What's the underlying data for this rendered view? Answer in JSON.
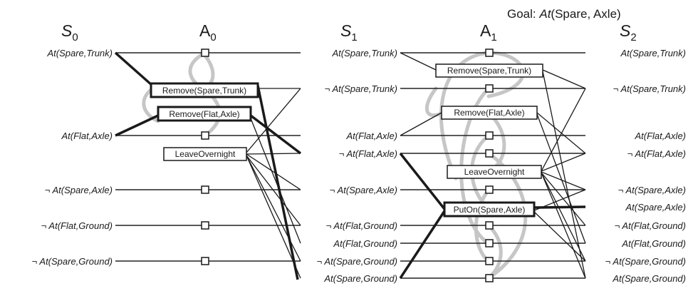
{
  "goal": {
    "prefix": "Goal: ",
    "predicate": "At",
    "args": "(Spare, Axle)"
  },
  "levels": {
    "s0": {
      "letter": "S",
      "sub": "0"
    },
    "a0": {
      "letter": "A",
      "sub": "0"
    },
    "s1": {
      "letter": "S",
      "sub": "1"
    },
    "a1": {
      "letter": "A",
      "sub": "1"
    },
    "s2": {
      "letter": "S",
      "sub": "2"
    }
  },
  "s0_literals": [
    "At(Spare,Trunk)",
    "At(Flat,Axle)",
    "¬ At(Spare,Axle)",
    "¬ At(Flat,Ground)",
    "¬ At(Spare,Ground)"
  ],
  "s1_literals": [
    "At(Spare,Trunk)",
    "¬ At(Spare,Trunk)",
    "At(Flat,Axle)",
    "¬ At(Flat,Axle)",
    "¬ At(Spare,Axle)",
    "¬ At(Flat,Ground)",
    "At(Flat,Ground)",
    "¬ At(Spare,Ground)",
    "At(Spare,Ground)"
  ],
  "s2_literals": [
    "At(Spare,Trunk)",
    "¬ At(Spare,Trunk)",
    "At(Flat,Axle)",
    "¬ At(Flat,Axle)",
    "¬ At(Spare,Axle)",
    "At(Spare,Axle)",
    "¬ At(Flat,Ground)",
    "At(Flat,Ground)",
    "¬ At(Spare,Ground)",
    "At(Spare,Ground)"
  ],
  "a0_actions": [
    "Remove(Spare,Trunk)",
    "Remove(Flat,Axle)",
    "LeaveOvernight"
  ],
  "a1_actions": [
    "Remove(Spare,Trunk)",
    "Remove(Flat,Axle)",
    "LeaveOvernight",
    "PutOn(Spare,Axle)"
  ]
}
